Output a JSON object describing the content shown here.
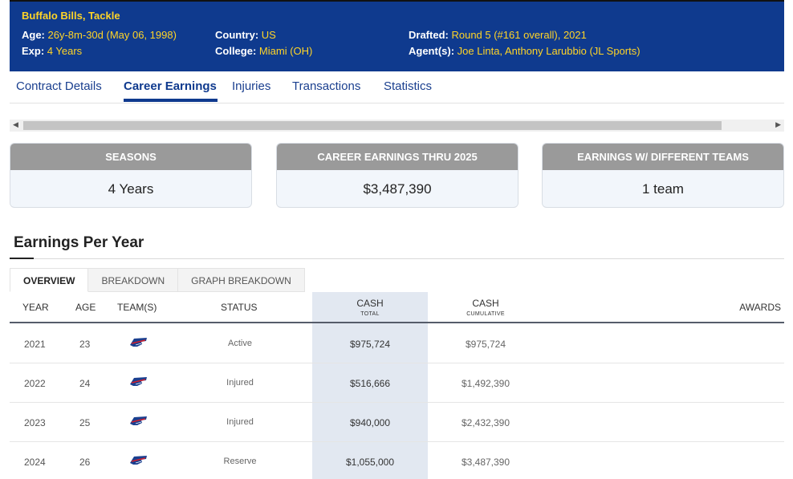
{
  "header": {
    "title": "Buffalo Bills, Tackle",
    "age_label": "Age:",
    "age_value": "26y-8m-30d (May 06, 1998)",
    "exp_label": "Exp:",
    "exp_value": "4 Years",
    "country_label": "Country:",
    "country_value": "US",
    "college_label": "College:",
    "college_value": "Miami (OH)",
    "drafted_label": "Drafted:",
    "drafted_value": "Round 5 (#161 overall), 2021",
    "agents_label": "Agent(s):",
    "agents_value": "Joe Linta, Anthony Larubbio (JL Sports)"
  },
  "tabs": [
    "Contract Details",
    "Career Earnings",
    "Injuries",
    "Transactions",
    "Statistics"
  ],
  "active_tab": "Career Earnings",
  "cards": [
    {
      "label": "SEASONS",
      "value": "4 Years"
    },
    {
      "label": "CAREER EARNINGS THRU 2025",
      "value": "$3,487,390"
    },
    {
      "label": "EARNINGS W/ DIFFERENT TEAMS",
      "value": "1 team"
    }
  ],
  "section": {
    "title": "Earnings Per Year"
  },
  "subtabs": [
    "OVERVIEW",
    "BREAKDOWN",
    "GRAPH BREAKDOWN"
  ],
  "active_subtab": "OVERVIEW",
  "table": {
    "headers": {
      "year": "YEAR",
      "age": "AGE",
      "teams": "TEAM(S)",
      "status": "STATUS",
      "cash": "CASH",
      "cash_sub": "TOTAL",
      "cum": "CASH",
      "cum_sub": "CUMULATIVE",
      "awards": "AWARDS"
    },
    "rows": [
      {
        "year": "2021",
        "age": "23",
        "status": "Active",
        "cash": "$975,724",
        "cumulative": "$975,724"
      },
      {
        "year": "2022",
        "age": "24",
        "status": "Injured",
        "cash": "$516,666",
        "cumulative": "$1,492,390"
      },
      {
        "year": "2023",
        "age": "25",
        "status": "Injured",
        "cash": "$940,000",
        "cumulative": "$2,432,390"
      },
      {
        "year": "2024",
        "age": "26",
        "status": "Reserve",
        "cash": "$1,055,000",
        "cumulative": "$3,487,390"
      }
    ]
  },
  "colors": {
    "header_bg": "#0f3a8e",
    "header_accent": "#ffd427",
    "card_label_bg": "#9a9a9a",
    "cash_col_bg": "#e2e8f1"
  },
  "icons": {
    "team_logo": "bills-logo-icon"
  }
}
